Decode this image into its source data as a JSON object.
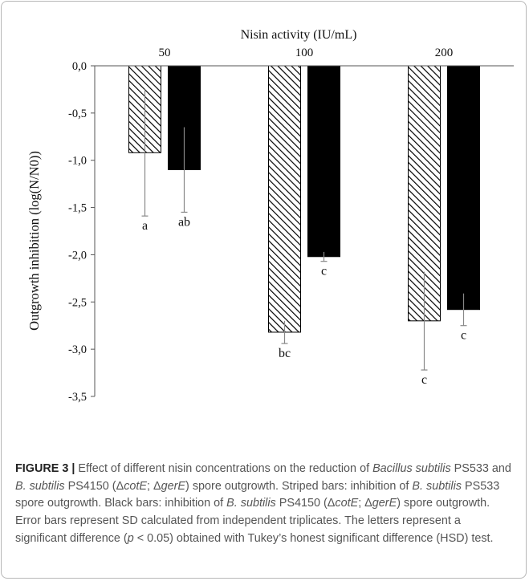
{
  "chart_data": {
    "type": "bar",
    "x_axis_title": "Nisin activity (IU/mL)",
    "ylabel": "Outgrowth inhibition  (log(N/N0))",
    "categories": [
      "50",
      "100",
      "200"
    ],
    "ylim": [
      -3.5,
      0
    ],
    "yticks": [
      0,
      -0.5,
      -1.0,
      -1.5,
      -2.0,
      -2.5,
      -3.0,
      -3.5
    ],
    "ytick_labels": [
      "0,0",
      "-0,5",
      "-1,0",
      "-1,5",
      "-2,0",
      "-2,5",
      "-3,0",
      "-3,5"
    ],
    "grid": false,
    "legend": "none",
    "series": [
      {
        "pattern": "diagonal-stripes",
        "color": "#000000",
        "values": [
          -0.92,
          -2.82,
          -2.7
        ],
        "error": [
          0.67,
          0.12,
          0.52
        ],
        "letters": [
          "a",
          "bc",
          "c"
        ]
      },
      {
        "pattern": "solid",
        "color": "#000000",
        "values": [
          -1.1,
          -2.02,
          -2.58
        ],
        "error": [
          0.45,
          0.05,
          0.17
        ],
        "letters": [
          "ab",
          "c",
          "c"
        ]
      }
    ]
  },
  "caption": {
    "label": "FIGURE 3 |",
    "t1": " Effect of different nisin concentrations on the reduction of ",
    "i1": "Bacillus subtilis",
    "t2": " PS533 and ",
    "i2": "B. subtilis",
    "t3": " PS4150 (Δ",
    "i3": "cotE",
    "t4": "; Δ",
    "i4": "gerE",
    "t5": ") spore outgrowth. Striped bars: inhibition of ",
    "i5": "B. subtilis",
    "t6": " PS533 spore outgrowth. Black bars: inhibition of ",
    "i6": "B. subtilis",
    "t7": " PS4150 (Δ",
    "i7": "cotE",
    "t8": "; Δ",
    "i8": "gerE",
    "t9": ") spore outgrowth. Error bars represent SD calculated from independent triplicates. The letters represent a significant difference (",
    "i9": "p",
    "t10": " < 0.05) obtained with Tukey’s honest significant difference (HSD) test."
  }
}
